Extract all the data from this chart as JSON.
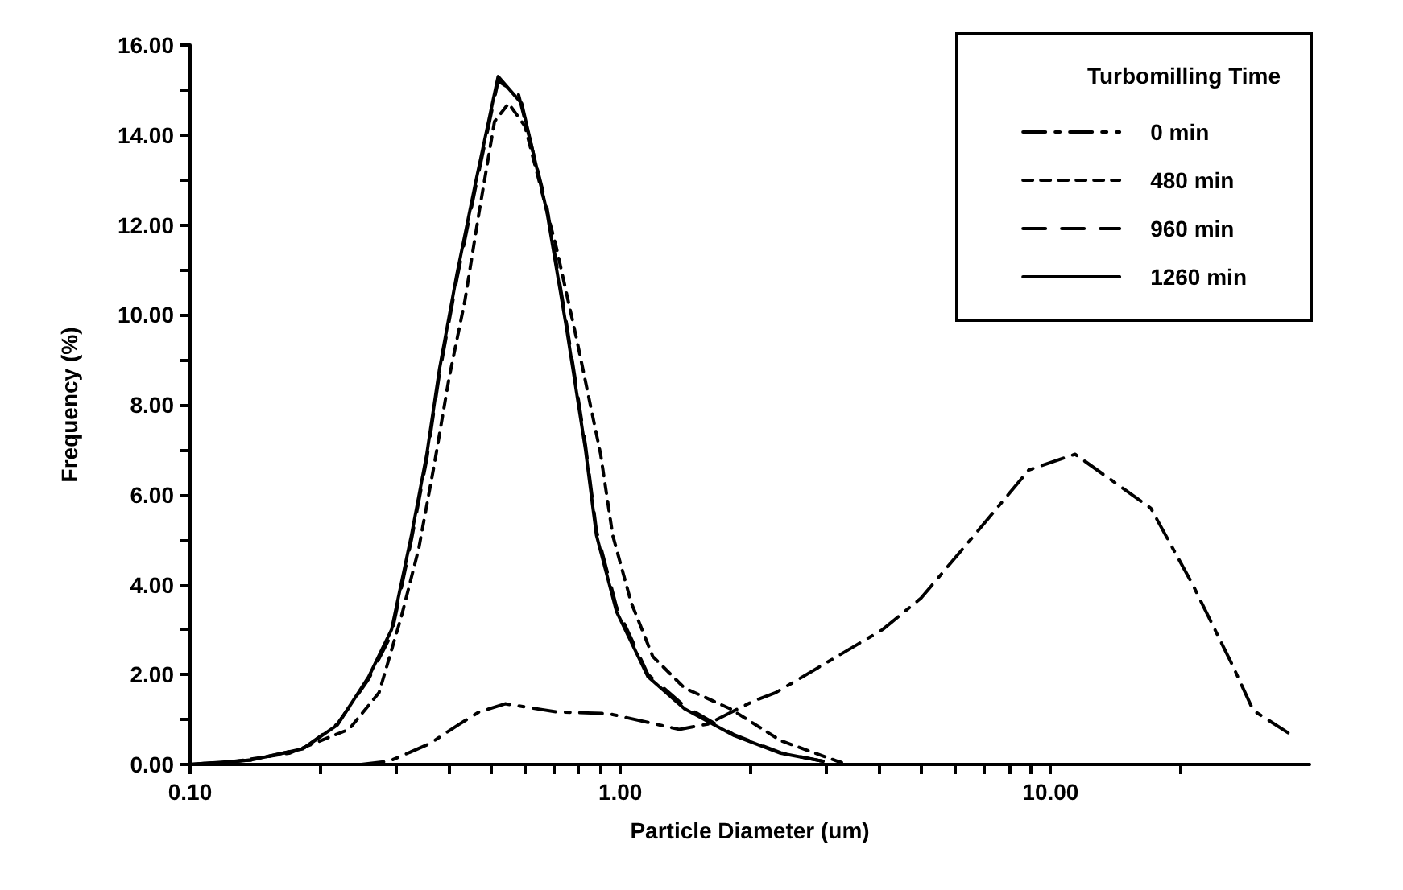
{
  "chart_data": {
    "type": "line",
    "xlabel": "Particle Diameter (um)",
    "ylabel": "Frequency (%)",
    "legend_title": "Turbomilling Time",
    "log": "x",
    "grid": false,
    "legend": "top right",
    "marker": "none",
    "xlim": [
      0.1,
      40
    ],
    "ylim": [
      0,
      16
    ],
    "xticks": [
      {
        "value": 0.1,
        "label": "0.10"
      },
      {
        "value": 0.2,
        "label": null
      },
      {
        "value": 0.3,
        "label": null
      },
      {
        "value": 0.4,
        "label": null
      },
      {
        "value": 0.5,
        "label": null
      },
      {
        "value": 0.6,
        "label": null
      },
      {
        "value": 0.7,
        "label": null
      },
      {
        "value": 0.8,
        "label": null
      },
      {
        "value": 0.9,
        "label": null
      },
      {
        "value": 1,
        "label": "1.00"
      },
      {
        "value": 2,
        "label": null
      },
      {
        "value": 3,
        "label": null
      },
      {
        "value": 4,
        "label": null
      },
      {
        "value": 5,
        "label": null
      },
      {
        "value": 6,
        "label": null
      },
      {
        "value": 7,
        "label": null
      },
      {
        "value": 8,
        "label": null
      },
      {
        "value": 9,
        "label": null
      },
      {
        "value": 10,
        "label": "10.00"
      },
      {
        "value": 20,
        "label": null
      }
    ],
    "yticks": [
      {
        "value": 0,
        "label": "0.00"
      },
      {
        "value": 1,
        "label": null
      },
      {
        "value": 2,
        "label": "2.00"
      },
      {
        "value": 3,
        "label": null
      },
      {
        "value": 4,
        "label": "4.00"
      },
      {
        "value": 5,
        "label": null
      },
      {
        "value": 6,
        "label": "6.00"
      },
      {
        "value": 7,
        "label": null
      },
      {
        "value": 8,
        "label": "8.00"
      },
      {
        "value": 9,
        "label": null
      },
      {
        "value": 10,
        "label": "10.00"
      },
      {
        "value": 11,
        "label": null
      },
      {
        "value": 12,
        "label": "12.00"
      },
      {
        "value": 13,
        "label": null
      },
      {
        "value": 14,
        "label": "14.00"
      },
      {
        "value": 15,
        "label": null
      },
      {
        "value": 16,
        "label": "16.00"
      }
    ],
    "series": [
      {
        "name": "0 min",
        "color": "#000000",
        "line_style": "dashdot",
        "x": [
          0.25,
          0.29,
          0.36,
          0.42,
          0.47,
          0.54,
          0.71,
          0.94,
          1.37,
          1.6,
          1.8,
          2.05,
          2.3,
          4.07,
          5.0,
          6.65,
          8.9,
          11.4,
          17.1,
          21.4,
          26.5,
          29.6,
          35.7
        ],
        "values": [
          0,
          0.07,
          0.46,
          0.88,
          1.17,
          1.35,
          1.17,
          1.13,
          0.78,
          0.9,
          1.15,
          1.42,
          1.6,
          3.0,
          3.7,
          5.1,
          6.55,
          6.9,
          5.7,
          4.0,
          2.2,
          1.2,
          0.7
        ]
      },
      {
        "name": "480 min",
        "color": "#000000",
        "line_style": "dashed",
        "x": [
          0.115,
          0.17,
          0.234,
          0.275,
          0.31,
          0.34,
          0.37,
          0.4,
          0.435,
          0.47,
          0.51,
          0.55,
          0.6,
          0.71,
          0.79,
          0.9,
          0.96,
          1.06,
          1.19,
          1.41,
          1.8,
          2.36,
          3.2,
          3.4
        ],
        "values": [
          0,
          0.25,
          0.78,
          1.6,
          3.3,
          4.8,
          6.7,
          8.6,
          10.3,
          12.3,
          14.3,
          14.7,
          14.2,
          11.5,
          9.5,
          6.9,
          5.1,
          3.6,
          2.4,
          1.7,
          1.24,
          0.53,
          0.07,
          0
        ]
      },
      {
        "name": "960 min",
        "color": "#000000",
        "line_style": "longdash",
        "x": [
          0.1,
          0.139,
          0.183,
          0.22,
          0.26,
          0.294,
          0.327,
          0.355,
          0.38,
          0.417,
          0.46,
          0.52,
          0.58,
          0.675,
          0.75,
          0.83,
          0.88,
          0.98,
          1.16,
          1.41,
          1.84,
          2.36,
          2.96
        ],
        "values": [
          0,
          0.1,
          0.35,
          0.9,
          1.9,
          2.9,
          5.0,
          6.8,
          8.7,
          10.8,
          12.8,
          15.2,
          14.9,
          12.4,
          9.8,
          7.1,
          5.2,
          3.5,
          2.0,
          1.3,
          0.66,
          0.26,
          0.07
        ]
      },
      {
        "name": "1260 min",
        "color": "#000000",
        "line_style": "solid",
        "x": [
          0.1,
          0.139,
          0.183,
          0.22,
          0.26,
          0.294,
          0.327,
          0.355,
          0.38,
          0.417,
          0.46,
          0.52,
          0.59,
          0.675,
          0.75,
          0.83,
          0.88,
          0.98,
          1.16,
          1.41,
          1.84,
          2.36,
          2.96
        ],
        "values": [
          0,
          0.1,
          0.35,
          0.88,
          1.95,
          3.0,
          5.1,
          6.9,
          8.8,
          10.9,
          12.9,
          15.3,
          14.7,
          12.3,
          9.7,
          7.0,
          5.1,
          3.4,
          1.95,
          1.24,
          0.64,
          0.25,
          0.07
        ]
      }
    ]
  }
}
